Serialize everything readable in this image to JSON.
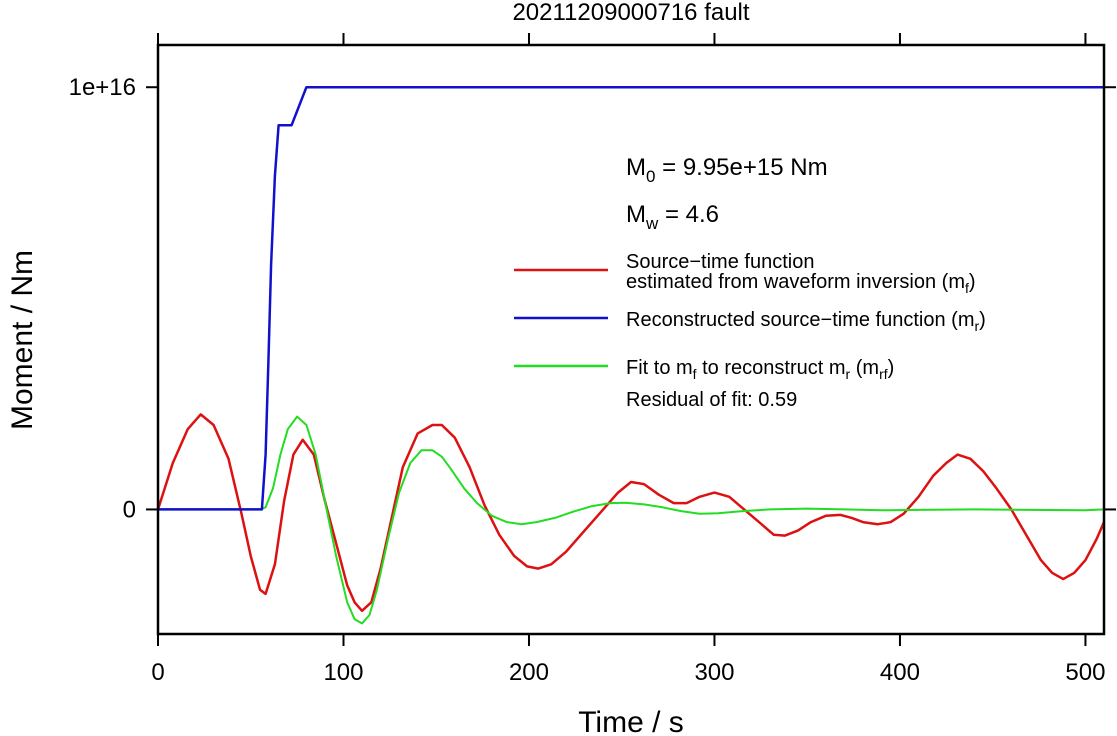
{
  "chart_data": {
    "type": "line",
    "title": "20211209000716 fault",
    "xlabel": "Time / s",
    "ylabel": "Moment / Nm",
    "xlim": [
      0,
      510
    ],
    "ylim": [
      -2950000000000000.0,
      1.1e+16
    ],
    "x_ticks": [
      0,
      100,
      200,
      300,
      400,
      500
    ],
    "x_tick_labels": [
      "0",
      "100",
      "200",
      "300",
      "400",
      "500"
    ],
    "y_ticks": [
      0,
      1e+16
    ],
    "y_tick_labels": [
      "0",
      "1e+16"
    ],
    "grid": false,
    "annotations": {
      "m0": {
        "main": "M",
        "sub": "0",
        "rest": " = 9.95e+15 Nm"
      },
      "mw": {
        "main": "M",
        "sub": "w",
        "rest": " = 4.6"
      }
    },
    "legend": {
      "placement": "right",
      "entries": [
        {
          "color": "#dd1111",
          "line1": "Source−time function",
          "line2_pre": "estimated from waveform inversion (m",
          "line2_sub": "f",
          "line2_post": ")"
        },
        {
          "color": "#1111cc",
          "pre": "Reconstructed source−time function (m",
          "sub": "r",
          "post": ")"
        },
        {
          "color": "#22dd22",
          "pre1": "Fit to m",
          "sub1": "f",
          "mid": " to reconstruct m",
          "sub2": "r",
          "mid2": " (m",
          "sub3": "rf",
          "post": ")"
        }
      ],
      "residual": "Residual of fit: 0.59"
    },
    "series": [
      {
        "key": "mf",
        "color": "#dd1111",
        "x": [
          0,
          8,
          16,
          23,
          30,
          38,
          45,
          50,
          55,
          58,
          63,
          68,
          73,
          78,
          84,
          90,
          96,
          102,
          106,
          110,
          115,
          120,
          126,
          132,
          140,
          148,
          153,
          160,
          168,
          176,
          184,
          192,
          199,
          205,
          212,
          220,
          230,
          240,
          248,
          255,
          262,
          270,
          278,
          285,
          292,
          300,
          308,
          316,
          324,
          332,
          338,
          345,
          352,
          360,
          368,
          374,
          380,
          388,
          395,
          402,
          410,
          418,
          425,
          431,
          438,
          445,
          452,
          460,
          468,
          476,
          482,
          488,
          494,
          500,
          506,
          510
        ],
        "y": [
          0.0,
          0.11,
          0.19,
          0.225,
          0.2,
          0.12,
          -0.01,
          -0.11,
          -0.19,
          -0.2,
          -0.13,
          0.02,
          0.13,
          0.165,
          0.13,
          0.02,
          -0.08,
          -0.18,
          -0.22,
          -0.24,
          -0.22,
          -0.14,
          -0.02,
          0.1,
          0.18,
          0.2,
          0.2,
          0.17,
          0.1,
          0.01,
          -0.06,
          -0.11,
          -0.135,
          -0.14,
          -0.13,
          -0.1,
          -0.05,
          0.0,
          0.04,
          0.065,
          0.06,
          0.035,
          0.015,
          0.015,
          0.03,
          0.04,
          0.03,
          0.0,
          -0.03,
          -0.06,
          -0.062,
          -0.05,
          -0.03,
          -0.015,
          -0.013,
          -0.02,
          -0.03,
          -0.035,
          -0.03,
          -0.01,
          0.03,
          0.08,
          0.11,
          0.13,
          0.12,
          0.09,
          0.05,
          0.0,
          -0.06,
          -0.12,
          -0.15,
          -0.165,
          -0.15,
          -0.12,
          -0.07,
          -0.03
        ]
      },
      {
        "key": "mr",
        "color": "#1111cc",
        "x": [
          0,
          56,
          58,
          59.5,
          61,
          63,
          65,
          72,
          80,
          510
        ],
        "y": [
          0,
          0,
          0.13,
          0.35,
          0.58,
          0.79,
          0.91,
          0.91,
          1.0,
          1.0
        ]
      },
      {
        "key": "mrf",
        "color": "#22dd22",
        "x": [
          0,
          20,
          40,
          50,
          55,
          58,
          62,
          66,
          70,
          75,
          80,
          85,
          90,
          96,
          102,
          106,
          110,
          114,
          118,
          124,
          130,
          136,
          142,
          148,
          153,
          158,
          165,
          172,
          180,
          188,
          196,
          204,
          214,
          224,
          234,
          244,
          252,
          262,
          272,
          282,
          292,
          302,
          315,
          330,
          350,
          370,
          390,
          410,
          440,
          470,
          500,
          510
        ],
        "y": [
          0.0,
          0.0,
          0.0,
          0.0,
          0.0,
          0.005,
          0.05,
          0.13,
          0.19,
          0.22,
          0.2,
          0.13,
          0.02,
          -0.11,
          -0.22,
          -0.26,
          -0.27,
          -0.25,
          -0.19,
          -0.07,
          0.04,
          0.11,
          0.14,
          0.14,
          0.125,
          0.095,
          0.05,
          0.015,
          -0.015,
          -0.03,
          -0.035,
          -0.03,
          -0.02,
          -0.005,
          0.008,
          0.015,
          0.016,
          0.012,
          0.005,
          -0.004,
          -0.01,
          -0.009,
          -0.004,
          0.0,
          0.002,
          0.0,
          -0.002,
          -0.001,
          0.0,
          -0.001,
          -0.002,
          0.0
        ]
      }
    ]
  }
}
